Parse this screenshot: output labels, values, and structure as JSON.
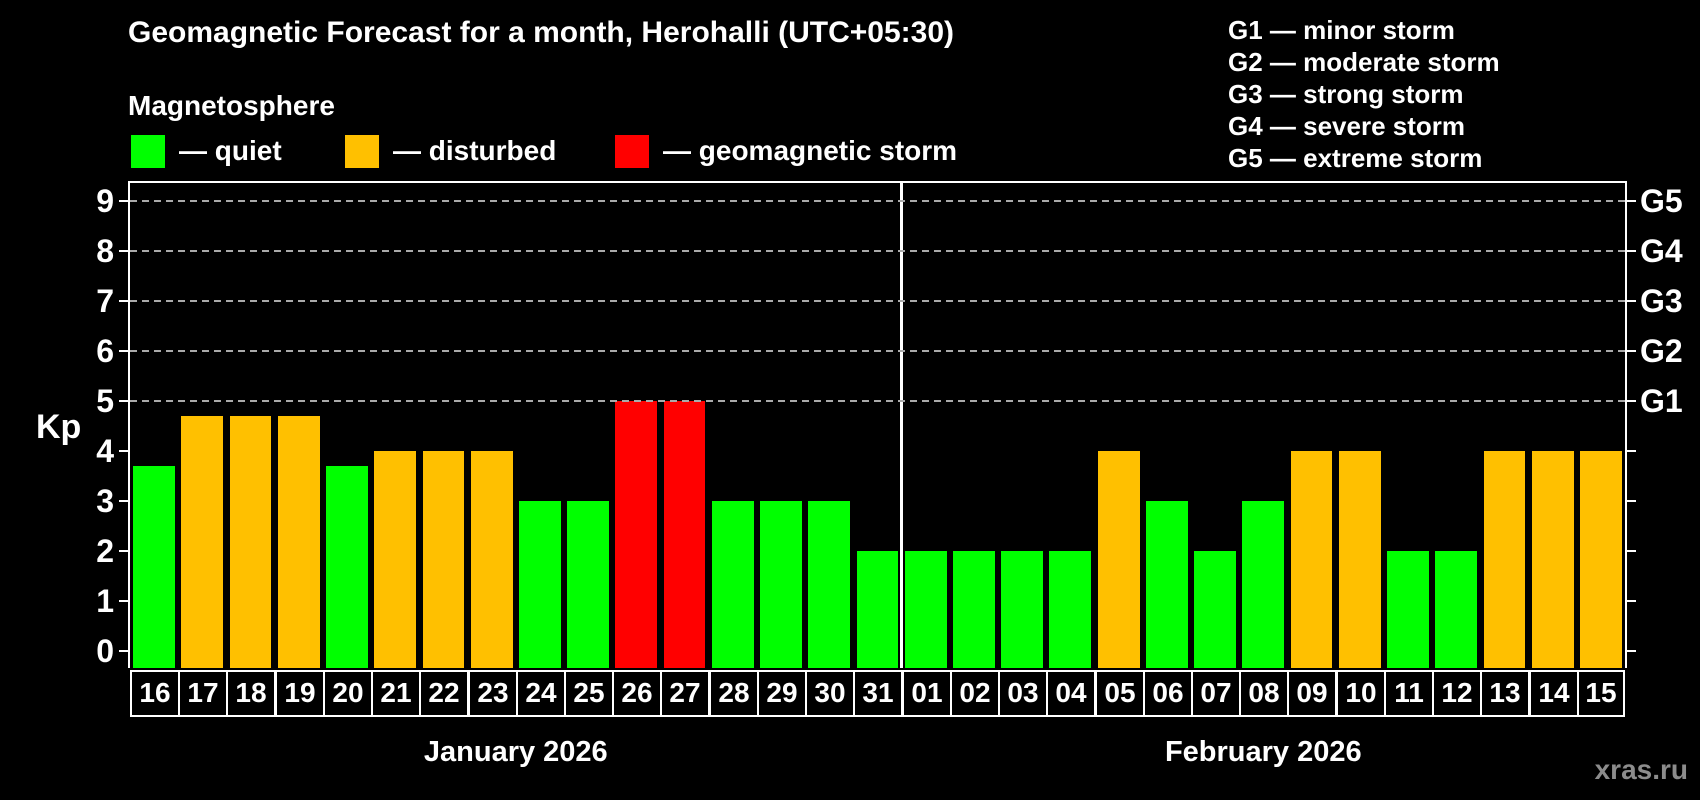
{
  "header": {
    "title": "Geomagnetic Forecast for a month, Herohalli (UTC+05:30)",
    "subtitle": "Magnetosphere"
  },
  "legend": {
    "items": [
      {
        "label": "— quiet",
        "status": "quiet",
        "color": "#00ff00"
      },
      {
        "label": "— disturbed",
        "status": "disturbed",
        "color": "#ffc000"
      },
      {
        "label": "— geomagnetic storm",
        "status": "storm",
        "color": "#ff0000"
      }
    ]
  },
  "g_legend": [
    "G1 — minor storm",
    "G2 — moderate storm",
    "G3 — strong storm",
    "G4 — severe storm",
    "G5 — extreme storm"
  ],
  "watermark": "xras.ru",
  "chart_data": {
    "type": "bar",
    "title": "Geomagnetic Forecast for a month, Herohalli (UTC+05:30)",
    "xlabel": "",
    "ylabel": "Kp",
    "ylim": [
      0,
      9.4
    ],
    "yticks": [
      0,
      1,
      2,
      3,
      4,
      5,
      6,
      7,
      8,
      9
    ],
    "gridline_levels": [
      5,
      6,
      7,
      8,
      9
    ],
    "grid": "horizontal dashed gray lines at storm levels only",
    "legend_position": "top",
    "right_axis": [
      {
        "label": "G1",
        "kp": 5
      },
      {
        "label": "G2",
        "kp": 6
      },
      {
        "label": "G3",
        "kp": 7
      },
      {
        "label": "G4",
        "kp": 8
      },
      {
        "label": "G5",
        "kp": 9
      }
    ],
    "months": [
      {
        "label": "January 2026",
        "days": 16
      },
      {
        "label": "February 2026",
        "days": 15
      }
    ],
    "colors": {
      "quiet": "#00ff00",
      "disturbed": "#ffc000",
      "storm": "#ff0000"
    },
    "days": [
      {
        "day": "16",
        "kp": 3.7,
        "status": "quiet"
      },
      {
        "day": "17",
        "kp": 4.7,
        "status": "disturbed"
      },
      {
        "day": "18",
        "kp": 4.7,
        "status": "disturbed"
      },
      {
        "day": "19",
        "kp": 4.7,
        "status": "disturbed"
      },
      {
        "day": "20",
        "kp": 3.7,
        "status": "quiet"
      },
      {
        "day": "21",
        "kp": 4,
        "status": "disturbed"
      },
      {
        "day": "22",
        "kp": 4,
        "status": "disturbed"
      },
      {
        "day": "23",
        "kp": 4,
        "status": "disturbed"
      },
      {
        "day": "24",
        "kp": 3,
        "status": "quiet"
      },
      {
        "day": "25",
        "kp": 3,
        "status": "quiet"
      },
      {
        "day": "26",
        "kp": 5,
        "status": "storm"
      },
      {
        "day": "27",
        "kp": 5,
        "status": "storm"
      },
      {
        "day": "28",
        "kp": 3,
        "status": "quiet"
      },
      {
        "day": "29",
        "kp": 3,
        "status": "quiet"
      },
      {
        "day": "30",
        "kp": 3,
        "status": "quiet"
      },
      {
        "day": "31",
        "kp": 2,
        "status": "quiet"
      },
      {
        "day": "01",
        "kp": 2,
        "status": "quiet"
      },
      {
        "day": "02",
        "kp": 2,
        "status": "quiet"
      },
      {
        "day": "03",
        "kp": 2,
        "status": "quiet"
      },
      {
        "day": "04",
        "kp": 2,
        "status": "quiet"
      },
      {
        "day": "05",
        "kp": 4,
        "status": "disturbed"
      },
      {
        "day": "06",
        "kp": 3,
        "status": "quiet"
      },
      {
        "day": "07",
        "kp": 2,
        "status": "quiet"
      },
      {
        "day": "08",
        "kp": 3,
        "status": "quiet"
      },
      {
        "day": "09",
        "kp": 4,
        "status": "disturbed"
      },
      {
        "day": "10",
        "kp": 4,
        "status": "disturbed"
      },
      {
        "day": "11",
        "kp": 2,
        "status": "quiet"
      },
      {
        "day": "12",
        "kp": 2,
        "status": "quiet"
      },
      {
        "day": "13",
        "kp": 4,
        "status": "disturbed"
      },
      {
        "day": "14",
        "kp": 4,
        "status": "disturbed"
      },
      {
        "day": "15",
        "kp": 4,
        "status": "disturbed"
      }
    ]
  }
}
